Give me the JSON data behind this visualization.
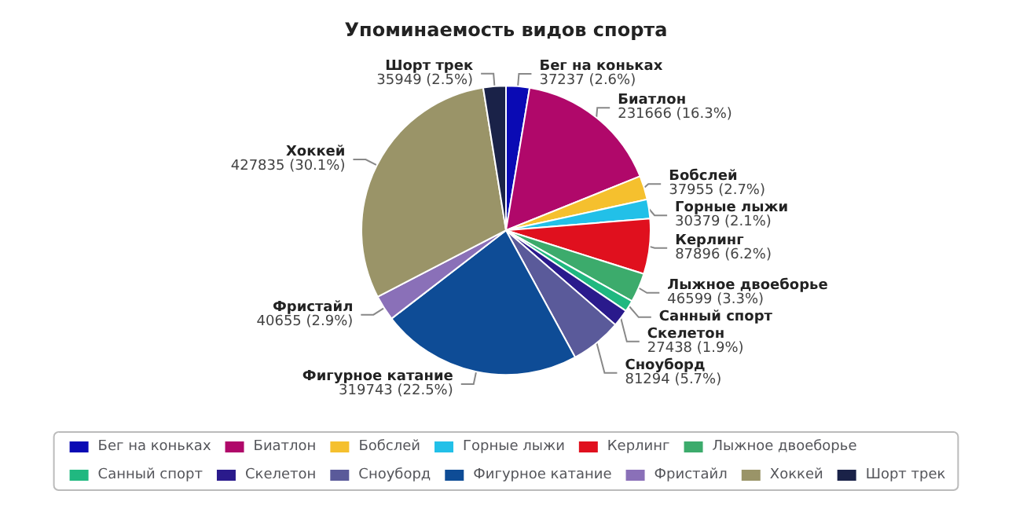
{
  "chart_data": {
    "type": "pie",
    "title": "Упоминаемость видов спорта",
    "categories": [
      "Бег на коньках",
      "Биатлон",
      "Бобслей",
      "Горные лыжи",
      "Керлинг",
      "Лыжное двоеборье",
      "Санный спорт",
      "Скелетон",
      "Сноуборд",
      "Фигурное катание",
      "Фристайл",
      "Хоккей",
      "Шорт трек"
    ],
    "values": [
      37237,
      231666,
      37955,
      30379,
      87896,
      46599,
      18000,
      27438,
      81294,
      319743,
      40655,
      427835,
      35949
    ],
    "colors": [
      "#0a0ab4",
      "#b0086a",
      "#f5c02e",
      "#22c0e8",
      "#e0101e",
      "#3cab6c",
      "#20b880",
      "#2a1a8c",
      "#5a5a9a",
      "#0e4c96",
      "#8a70b8",
      "#9a9468",
      "#1a2248"
    ],
    "value_labels": [
      "37237 (2.6%)",
      "231666 (16.3%)",
      "37955 (2.7%)",
      "30379 (2.1%)",
      "87896 (6.2%)",
      "46599 (3.3%)",
      null,
      "27438 (1.9%)",
      "81294 (5.7%)",
      "319743 (22.5%)",
      "40655 (2.9%)",
      "427835 (30.1%)",
      "35949 (2.5%)"
    ],
    "legend": "bottom"
  }
}
